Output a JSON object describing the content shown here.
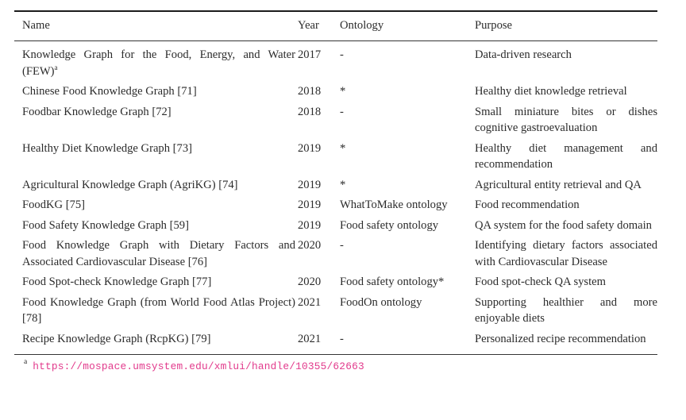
{
  "table": {
    "columns": [
      "Name",
      "Year",
      "Ontology",
      "Purpose"
    ],
    "rows": [
      {
        "name": "Knowledge Graph for the Food, Energy, and Water (FEW)",
        "name_superscript": "a",
        "year": "2017",
        "ontology": "-",
        "purpose": "Data-driven research"
      },
      {
        "name": "Chinese Food Knowledge Graph [71]",
        "year": "2018",
        "ontology": "*",
        "purpose": "Healthy diet knowledge retrieval"
      },
      {
        "name": "Foodbar Knowledge Graph [72]",
        "year": "2018",
        "ontology": "-",
        "purpose": "Small miniature bites or dishes cognitive gastroevaluation"
      },
      {
        "name": "Healthy Diet Knowledge Graph [73]",
        "year": "2019",
        "ontology": "*",
        "purpose": "Healthy diet management and recommendation"
      },
      {
        "name": "Agricultural Knowledge Graph (AgriKG) [74]",
        "year": "2019",
        "ontology": "*",
        "purpose": "Agricultural entity retrieval and QA"
      },
      {
        "name": "FoodKG [75]",
        "year": "2019",
        "ontology": "WhatToMake ontology",
        "purpose": "Food recommendation"
      },
      {
        "name": "Food Safety Knowledge Graph [59]",
        "year": "2019",
        "ontology": "Food safety ontology",
        "purpose": "QA system for the food safety domain"
      },
      {
        "name": "Food Knowledge Graph with Dietary Factors and Associated Cardiovascular Disease [76]",
        "year": "2020",
        "ontology": "-",
        "purpose": "Identifying dietary factors associ­ated with Cardiovascular Disease"
      },
      {
        "name": "Food Spot-check Knowledge Graph [77]",
        "year": "2020",
        "ontology": "Food safety ontology*",
        "purpose": "Food spot-check QA system"
      },
      {
        "name": "Food Knowledge Graph (from World Food Atlas Project) [78]",
        "year": "2021",
        "ontology": "FoodOn ontology",
        "purpose": "Supporting healthier and more enjoyable diets"
      },
      {
        "name": "Recipe Knowledge Graph (RcpKG) [79]",
        "year": "2021",
        "ontology": "-",
        "purpose": "Personalized recipe recommenda­tion"
      }
    ],
    "footnote": {
      "marker": "a",
      "url": "https://mospace.umsystem.edu/xmlui/handle/10355/62663"
    }
  },
  "colors": {
    "text": "#2b2b2b",
    "rule": "#1c1c1c",
    "link_pink": "#e23a8c"
  }
}
